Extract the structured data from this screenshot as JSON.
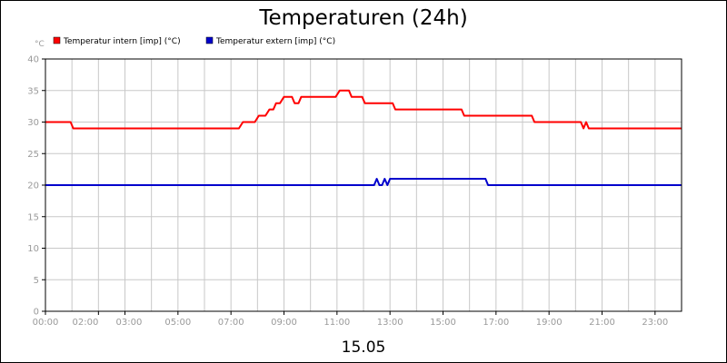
{
  "chart_data": {
    "type": "line",
    "title": "Temperaturen (24h)",
    "date_label": "15.05",
    "y_unit": "°C",
    "ylim": [
      0,
      40
    ],
    "y_ticks": [
      "0",
      "5",
      "10",
      "15",
      "20",
      "25",
      "30",
      "35",
      "40"
    ],
    "xlim": [
      0,
      24
    ],
    "x_ticks": [
      {
        "label": "00:00",
        "hour": 0
      },
      {
        "label": "02:00",
        "hour": 2
      },
      {
        "label": "03:00",
        "hour": 3
      },
      {
        "label": "05:00",
        "hour": 5
      },
      {
        "label": "07:00",
        "hour": 7
      },
      {
        "label": "09:00",
        "hour": 9
      },
      {
        "label": "11:00",
        "hour": 11
      },
      {
        "label": "13:00",
        "hour": 13
      },
      {
        "label": "15:00",
        "hour": 15
      },
      {
        "label": "17:00",
        "hour": 17
      },
      {
        "label": "19:00",
        "hour": 19
      },
      {
        "label": "21:00",
        "hour": 21
      },
      {
        "label": "23:00",
        "hour": 23
      }
    ],
    "grid": true,
    "legend_position": "top-left",
    "series": [
      {
        "name": "Temperatur intern [imp] (°C)",
        "color": "#ff0000",
        "x": [
          0,
          0.95,
          1.05,
          7.3,
          7.45,
          7.9,
          8.05,
          8.3,
          8.45,
          8.6,
          8.7,
          8.85,
          9.0,
          9.3,
          9.4,
          9.55,
          9.65,
          10.95,
          11.1,
          11.45,
          11.55,
          11.95,
          12.05,
          13.1,
          13.2,
          15.7,
          15.8,
          18.35,
          18.45,
          20.2,
          20.3,
          20.4,
          20.5,
          20.6,
          24
        ],
        "y": [
          30,
          30,
          29,
          29,
          30,
          30,
          31,
          31,
          32,
          32,
          33,
          33,
          34,
          34,
          33,
          33,
          34,
          34,
          35,
          35,
          34,
          34,
          33,
          33,
          32,
          32,
          31,
          31,
          30,
          30,
          29,
          30,
          29,
          29,
          29
        ]
      },
      {
        "name": "Temperatur extern [imp] (°C)",
        "color": "#0000cc",
        "x": [
          0,
          12.4,
          12.5,
          12.6,
          12.7,
          12.8,
          12.9,
          13.0,
          16.6,
          16.7,
          24
        ],
        "y": [
          20,
          20,
          21,
          20,
          20,
          21,
          20,
          21,
          21,
          20,
          20
        ]
      }
    ]
  }
}
